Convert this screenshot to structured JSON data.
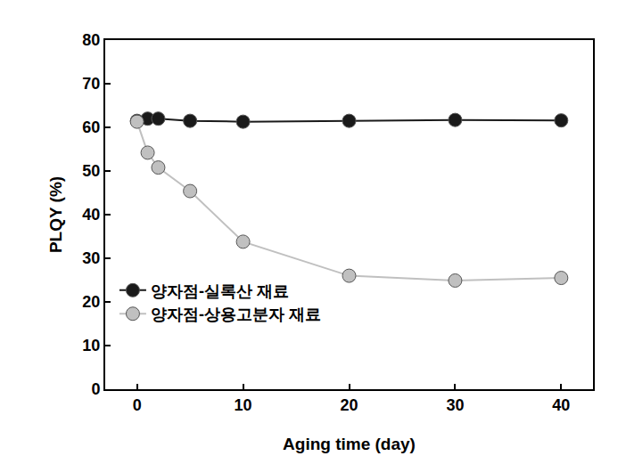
{
  "chart_data": {
    "type": "line",
    "x_label": "Aging time (day)",
    "y_label": "PLQY (%)",
    "xlim": [
      -3,
      43
    ],
    "xticks": [
      0,
      10,
      20,
      30,
      40
    ],
    "ylim": [
      0,
      80
    ],
    "yticks": [
      0,
      10,
      20,
      30,
      40,
      50,
      60,
      70,
      80
    ],
    "grid": false,
    "legend": "lower left",
    "marker": "circle",
    "series": [
      {
        "name": "양자점-실록산 재료",
        "color": "#1a1a1a",
        "x": [
          0,
          1,
          2,
          5,
          10,
          20,
          30,
          40
        ],
        "values": [
          61.5,
          62,
          62,
          61.5,
          61.3,
          61.5,
          61.7,
          61.6
        ]
      },
      {
        "name": "양자점-상용고분자 재료",
        "color": "#c0c0c0",
        "x": [
          0,
          1,
          2,
          5,
          10,
          20,
          30,
          40
        ],
        "values": [
          61.3,
          54.2,
          50.8,
          45.4,
          33.8,
          26,
          24.9,
          25.5
        ]
      }
    ]
  }
}
